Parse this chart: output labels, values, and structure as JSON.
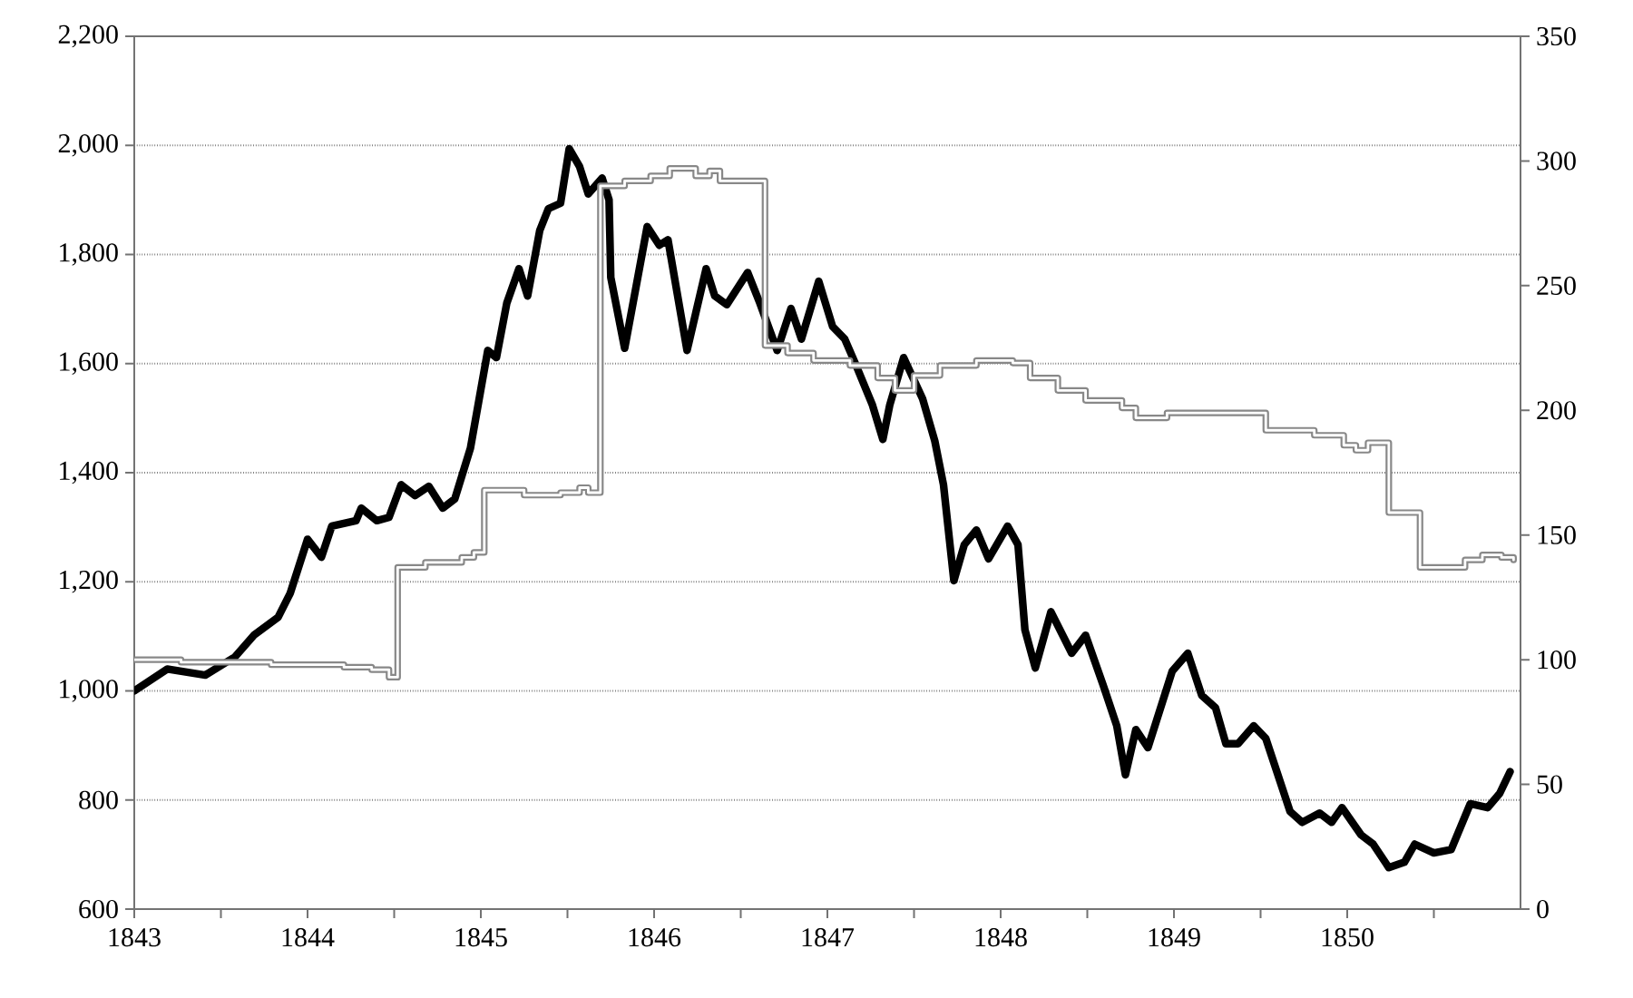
{
  "chart_data": {
    "type": "line",
    "grid": "y",
    "marker": "none",
    "xlim": [
      1843,
      1851
    ],
    "xticks": [
      1843,
      {
        "value": 1843.5,
        "label": null
      },
      1844,
      {
        "value": 1844.5,
        "label": null
      },
      1845,
      {
        "value": 1845.5,
        "label": null
      },
      1846,
      {
        "value": 1846.5,
        "label": null
      },
      1847,
      {
        "value": 1847.5,
        "label": null
      },
      1848,
      {
        "value": 1848.5,
        "label": null
      },
      1849,
      {
        "value": 1849.5,
        "label": null
      },
      1850,
      {
        "value": 1850.5,
        "label": null
      }
    ],
    "ylim": [
      600,
      2200
    ],
    "yticks": [
      600,
      800,
      {
        "value": 1000,
        "label": "1,000"
      },
      {
        "value": 1200,
        "label": "1,200"
      },
      {
        "value": 1400,
        "label": "1,400"
      },
      {
        "value": 1600,
        "label": "1,600"
      },
      {
        "value": 1800,
        "label": "1,800"
      },
      {
        "value": 2000,
        "label": "2,000"
      },
      {
        "value": 2200,
        "label": "2,200"
      }
    ],
    "y2lim": [
      0,
      350
    ],
    "y2ticks": [
      0,
      50,
      100,
      150,
      200,
      250,
      300,
      350
    ],
    "series": [
      {
        "color": "#000000",
        "x": [
          1843.0,
          1843.19,
          1843.41,
          1843.58,
          1843.69,
          1843.83,
          1843.9,
          1844.0,
          1844.08,
          1844.14,
          1844.28,
          1844.31,
          1844.4,
          1844.47,
          1844.54,
          1844.62,
          1844.7,
          1844.78,
          1844.85,
          1844.94,
          1845.04,
          1845.09,
          1845.15,
          1845.22,
          1845.27,
          1845.34,
          1845.39,
          1845.46,
          1845.51,
          1845.57,
          1845.62,
          1845.7,
          1845.74,
          1845.75,
          1845.83,
          1845.96,
          1846.03,
          1846.08,
          1846.19,
          1846.3,
          1846.35,
          1846.42,
          1846.54,
          1846.61,
          1846.71,
          1846.79,
          1846.85,
          1846.95,
          1847.03,
          1847.1,
          1847.16,
          1847.26,
          1847.32,
          1847.36,
          1847.44,
          1847.55,
          1847.62,
          1847.67,
          1847.73,
          1847.79,
          1847.86,
          1847.93,
          1848.04,
          1848.1,
          1848.14,
          1848.2,
          1848.29,
          1848.41,
          1848.49,
          1848.59,
          1848.67,
          1848.72,
          1848.78,
          1848.85,
          1848.99,
          1849.08,
          1849.16,
          1849.24,
          1849.3,
          1849.37,
          1849.46,
          1849.53,
          1849.67,
          1849.74,
          1849.84,
          1849.91,
          1849.97,
          1850.08,
          1850.15,
          1850.24,
          1850.33,
          1850.39,
          1850.5,
          1850.6,
          1850.71,
          1850.81,
          1850.88,
          1850.94
        ],
        "values": [
          1000,
          1040,
          1029,
          1062,
          1102,
          1135,
          1179,
          1278,
          1245,
          1302,
          1312,
          1335,
          1312,
          1318,
          1378,
          1358,
          1375,
          1335,
          1352,
          1445,
          1624,
          1611,
          1711,
          1774,
          1724,
          1844,
          1884,
          1894,
          1994,
          1961,
          1911,
          1940,
          1900,
          1758,
          1628,
          1851,
          1817,
          1827,
          1624,
          1774,
          1724,
          1708,
          1767,
          1711,
          1624,
          1701,
          1645,
          1751,
          1668,
          1645,
          1601,
          1524,
          1461,
          1524,
          1611,
          1535,
          1458,
          1378,
          1202,
          1268,
          1295,
          1242,
          1302,
          1268,
          1112,
          1042,
          1145,
          1069,
          1102,
          1012,
          936,
          846,
          929,
          896,
          1036,
          1069,
          992,
          969,
          903,
          903,
          936,
          913,
          779,
          759,
          776,
          759,
          786,
          736,
          719,
          676,
          686,
          719,
          703,
          709,
          793,
          786,
          812,
          852
        ]
      },
      {
        "type": "step",
        "axis": "y2",
        "color": "#888888",
        "x": [
          1843.0,
          1843.27,
          1843.79,
          1844.21,
          1844.37,
          1844.47,
          1844.52,
          1844.68,
          1844.89,
          1844.96,
          1845.02,
          1845.25,
          1845.46,
          1845.57,
          1845.62,
          1845.69,
          1845.83,
          1845.98,
          1846.09,
          1846.24,
          1846.32,
          1846.38,
          1846.64,
          1846.77,
          1846.92,
          1847.13,
          1847.29,
          1847.39,
          1847.5,
          1847.65,
          1847.86,
          1848.07,
          1848.17,
          1848.33,
          1848.49,
          1848.7,
          1848.78,
          1848.96,
          1849.53,
          1849.81,
          1849.98,
          1850.05,
          1850.12,
          1850.24,
          1850.42,
          1850.68,
          1850.78,
          1850.89,
          1850.96
        ],
        "values": [
          100,
          99,
          98,
          97,
          96,
          93,
          137,
          139,
          141,
          143,
          168,
          166,
          167,
          169,
          167,
          290,
          292,
          294,
          297,
          294,
          296,
          292,
          226,
          223,
          220,
          218,
          213,
          208,
          214,
          218,
          220,
          219,
          213,
          208,
          204,
          201,
          197,
          199,
          192,
          190,
          186,
          184,
          187,
          159,
          137,
          140,
          142,
          141,
          140
        ]
      }
    ]
  }
}
